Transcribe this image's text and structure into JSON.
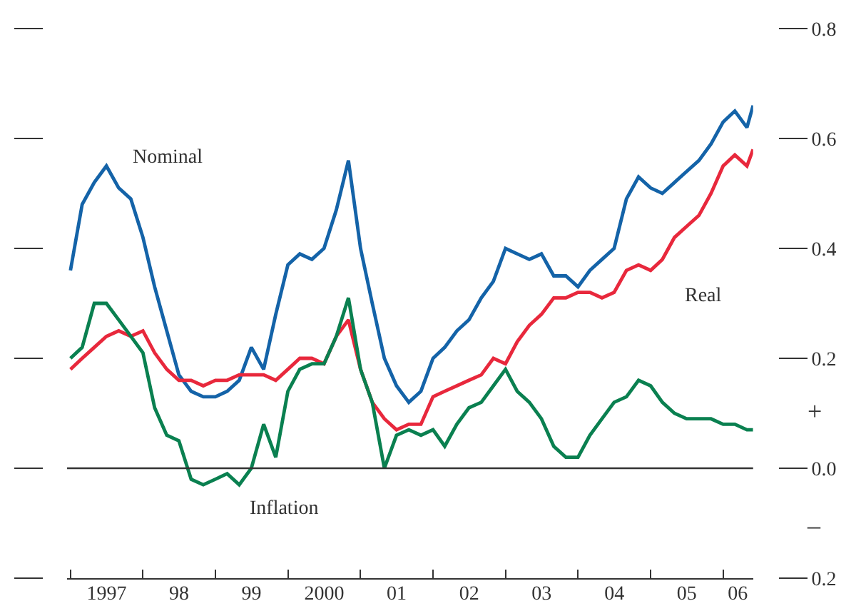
{
  "chart_data": {
    "type": "line",
    "x": [
      "1997-01",
      "1997-03",
      "1997-05",
      "1997-07",
      "1997-09",
      "1997-11",
      "1998-01",
      "1998-03",
      "1998-05",
      "1998-07",
      "1998-09",
      "1998-11",
      "1999-01",
      "1999-03",
      "1999-05",
      "1999-07",
      "1999-09",
      "1999-11",
      "2000-01",
      "2000-03",
      "2000-05",
      "2000-07",
      "2000-09",
      "2000-11",
      "2001-01",
      "2001-03",
      "2001-05",
      "2001-07",
      "2001-09",
      "2001-11",
      "2002-01",
      "2002-03",
      "2002-05",
      "2002-07",
      "2002-09",
      "2002-11",
      "2003-01",
      "2003-03",
      "2003-05",
      "2003-07",
      "2003-09",
      "2003-11",
      "2004-01",
      "2004-03",
      "2004-05",
      "2004-07",
      "2004-09",
      "2004-11",
      "2005-01",
      "2005-03",
      "2005-05",
      "2005-07",
      "2005-09",
      "2005-11",
      "2006-01",
      "2006-03",
      "2006-05",
      "2006-06"
    ],
    "series": [
      {
        "name": "Nominal",
        "color": "#1463a8",
        "values": [
          0.36,
          0.48,
          0.52,
          0.55,
          0.51,
          0.49,
          0.42,
          0.33,
          0.25,
          0.17,
          0.14,
          0.13,
          0.13,
          0.14,
          0.16,
          0.22,
          0.18,
          0.28,
          0.37,
          0.39,
          0.38,
          0.4,
          0.47,
          0.56,
          0.4,
          0.3,
          0.2,
          0.15,
          0.12,
          0.14,
          0.2,
          0.22,
          0.25,
          0.27,
          0.31,
          0.34,
          0.4,
          0.39,
          0.38,
          0.39,
          0.35,
          0.35,
          0.33,
          0.36,
          0.38,
          0.4,
          0.49,
          0.53,
          0.51,
          0.5,
          0.52,
          0.54,
          0.56,
          0.59,
          0.63,
          0.65,
          0.62,
          0.66
        ]
      },
      {
        "name": "Real",
        "color": "#e8283c",
        "values": [
          0.18,
          0.2,
          0.22,
          0.24,
          0.25,
          0.24,
          0.25,
          0.21,
          0.18,
          0.16,
          0.16,
          0.15,
          0.16,
          0.16,
          0.17,
          0.17,
          0.17,
          0.16,
          0.18,
          0.2,
          0.2,
          0.19,
          0.24,
          0.27,
          0.18,
          0.12,
          0.09,
          0.07,
          0.08,
          0.08,
          0.13,
          0.14,
          0.15,
          0.16,
          0.17,
          0.2,
          0.19,
          0.23,
          0.26,
          0.28,
          0.31,
          0.31,
          0.32,
          0.32,
          0.31,
          0.32,
          0.36,
          0.37,
          0.36,
          0.38,
          0.42,
          0.44,
          0.46,
          0.5,
          0.55,
          0.57,
          0.55,
          0.58
        ]
      },
      {
        "name": "Inflation",
        "color": "#0a8050",
        "values": [
          0.2,
          0.22,
          0.3,
          0.3,
          0.27,
          0.24,
          0.21,
          0.11,
          0.06,
          0.05,
          -0.02,
          -0.03,
          -0.02,
          -0.01,
          -0.03,
          0.0,
          0.08,
          0.02,
          0.14,
          0.18,
          0.19,
          0.19,
          0.24,
          0.31,
          0.18,
          0.12,
          0.0,
          0.06,
          0.07,
          0.06,
          0.07,
          0.04,
          0.08,
          0.11,
          0.12,
          0.15,
          0.18,
          0.14,
          0.12,
          0.09,
          0.04,
          0.02,
          0.02,
          0.06,
          0.09,
          0.12,
          0.13,
          0.16,
          0.15,
          0.12,
          0.1,
          0.09,
          0.09,
          0.09,
          0.08,
          0.08,
          0.07,
          0.07
        ]
      }
    ],
    "xlim": [
      "1996-12-15",
      "2006-06-01"
    ],
    "xticks": [
      {
        "value": "1997-01-01",
        "label": null
      },
      {
        "value": "1997-07-02",
        "label": "1997"
      },
      {
        "value": "1998-01-01",
        "label": null
      },
      {
        "value": "1998-07-02",
        "label": "98"
      },
      {
        "value": "1999-01-01",
        "label": null
      },
      {
        "value": "1999-07-02",
        "label": "99"
      },
      {
        "value": "2000-01-01",
        "label": null
      },
      {
        "value": "2000-07-02",
        "label": "2000"
      },
      {
        "value": "2001-01-01",
        "label": null
      },
      {
        "value": "2001-07-02",
        "label": "01"
      },
      {
        "value": "2002-01-01",
        "label": null
      },
      {
        "value": "2002-07-02",
        "label": "02"
      },
      {
        "value": "2003-01-01",
        "label": null
      },
      {
        "value": "2003-07-02",
        "label": "03"
      },
      {
        "value": "2004-01-01",
        "label": null
      },
      {
        "value": "2004-07-02",
        "label": "04"
      },
      {
        "value": "2005-01-01",
        "label": null
      },
      {
        "value": "2005-07-02",
        "label": "05"
      },
      {
        "value": "2006-01-01",
        "label": null
      },
      {
        "value": "2006-03-16",
        "label": "06"
      }
    ],
    "ylim": [
      -0.2,
      0.8
    ],
    "yticks": [
      {
        "value": -0.2,
        "label": "0.2"
      },
      {
        "value": 0,
        "label": "0.0"
      },
      {
        "value": 0.2,
        "label": "0.2"
      },
      {
        "value": 0.4,
        "label": "0.4"
      },
      {
        "value": 0.6,
        "label": "0.6"
      },
      {
        "value": 0.8,
        "label": "0.8"
      }
    ],
    "ref_lines": [
      {
        "axis": "y",
        "value": 0,
        "color": "#333333"
      }
    ],
    "annotations": [
      "+",
      "–"
    ],
    "grid": false,
    "legend": false,
    "marker": "none",
    "line_style": "solid"
  }
}
